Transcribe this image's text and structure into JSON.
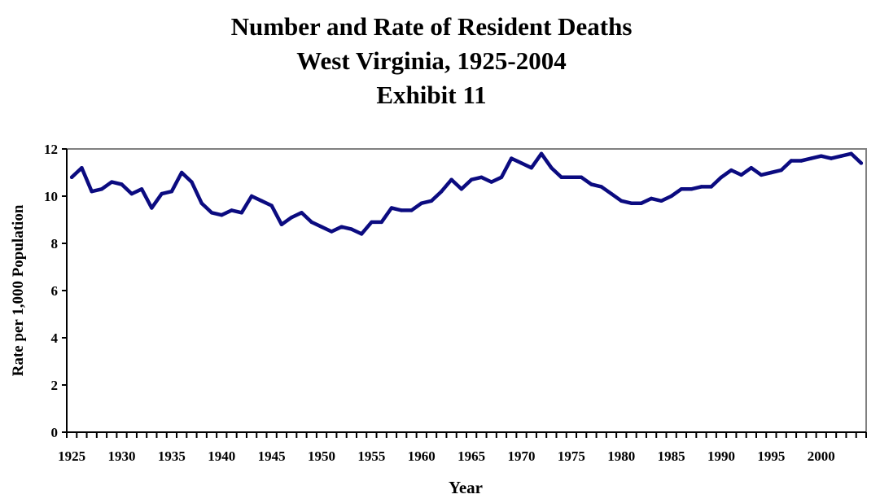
{
  "title": {
    "line1": "Number and Rate of Resident Deaths",
    "line2": "West Virginia, 1925-2004",
    "line3": "Exhibit 11"
  },
  "chart_data": {
    "type": "line",
    "title": "Number and Rate of Resident Deaths West Virginia, 1925-2004 Exhibit 11",
    "xlabel": "Year",
    "ylabel": "Rate per 1,000 Population",
    "xlim": [
      1925,
      2004
    ],
    "ylim": [
      0,
      12
    ],
    "y_ticks": [
      0,
      2,
      4,
      6,
      8,
      10,
      12
    ],
    "x_tick_labels": [
      1925,
      1930,
      1935,
      1940,
      1945,
      1950,
      1955,
      1960,
      1965,
      1970,
      1975,
      1980,
      1985,
      1990,
      1995,
      2000
    ],
    "grid": false,
    "legend": "none",
    "line_color": "#0b0b80",
    "plot_border_color": "#808080",
    "series": [
      {
        "x": [
          1925,
          1926,
          1927,
          1928,
          1929,
          1930,
          1931,
          1932,
          1933,
          1934,
          1935,
          1936,
          1937,
          1938,
          1939,
          1940,
          1941,
          1942,
          1943,
          1944,
          1945,
          1946,
          1947,
          1948,
          1949,
          1950,
          1951,
          1952,
          1953,
          1954,
          1955,
          1956,
          1957,
          1958,
          1959,
          1960,
          1961,
          1962,
          1963,
          1964,
          1965,
          1966,
          1967,
          1968,
          1969,
          1970,
          1971,
          1972,
          1973,
          1974,
          1975,
          1976,
          1977,
          1978,
          1979,
          1980,
          1981,
          1982,
          1983,
          1984,
          1985,
          1986,
          1987,
          1988,
          1989,
          1990,
          1991,
          1992,
          1993,
          1994,
          1995,
          1996,
          1997,
          1998,
          1999,
          2000,
          2001,
          2002,
          2003,
          2004
        ],
        "values": [
          10.8,
          11.2,
          10.2,
          10.3,
          10.6,
          10.5,
          10.1,
          10.3,
          9.5,
          10.1,
          10.2,
          11.0,
          10.6,
          9.7,
          9.3,
          9.2,
          9.4,
          9.3,
          10.0,
          9.8,
          9.6,
          8.8,
          9.1,
          9.3,
          8.9,
          8.7,
          8.5,
          8.7,
          8.6,
          8.4,
          8.9,
          8.9,
          9.5,
          9.4,
          9.4,
          9.7,
          9.8,
          10.2,
          10.7,
          10.3,
          10.7,
          10.8,
          10.6,
          10.8,
          11.6,
          11.4,
          11.2,
          11.8,
          11.2,
          10.8,
          10.8,
          10.8,
          10.5,
          10.4,
          10.1,
          9.8,
          9.7,
          9.7,
          9.9,
          9.8,
          10.0,
          10.3,
          10.3,
          10.4,
          10.4,
          10.8,
          11.1,
          10.9,
          11.2,
          10.9,
          11.0,
          11.1,
          11.5,
          11.5,
          11.6,
          11.7,
          11.6,
          11.7,
          11.8,
          11.4
        ]
      }
    ]
  }
}
